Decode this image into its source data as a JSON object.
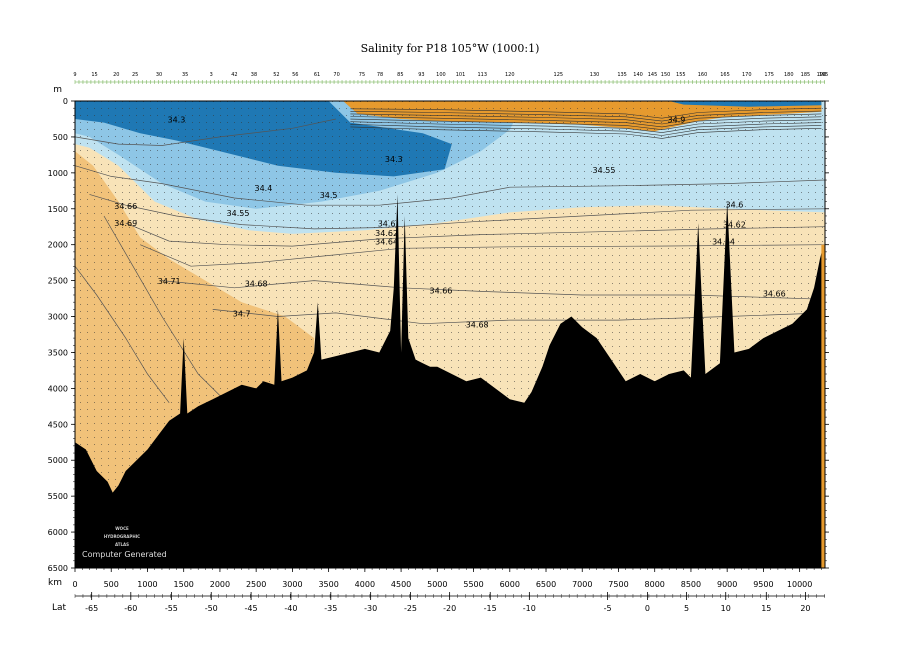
{
  "chart_data": {
    "type": "heatmap",
    "title": "Salinity for P18 105°W (1000:1)",
    "y_axis": {
      "unit": "m",
      "range": [
        0,
        6500
      ],
      "ticks": [
        "0",
        "500",
        "1000",
        "1500",
        "2000",
        "2500",
        "3000",
        "3500",
        "4000",
        "4500",
        "5000",
        "5500",
        "6000",
        "6500"
      ],
      "values": [
        0,
        500,
        1000,
        1500,
        2000,
        2500,
        3000,
        3500,
        4000,
        4500,
        5000,
        5500,
        6000,
        6500
      ]
    },
    "x_axis": {
      "unit": "km",
      "range": [
        0,
        10350
      ],
      "ticks": [
        "0",
        "500",
        "1000",
        "1500",
        "2000",
        "2500",
        "3000",
        "3500",
        "4000",
        "4500",
        "5000",
        "5500",
        "6000",
        "6500",
        "7000",
        "7500",
        "8000",
        "8500",
        "9000",
        "9500",
        "10000"
      ],
      "values": [
        0,
        500,
        1000,
        1500,
        2000,
        2500,
        3000,
        3500,
        4000,
        4500,
        5000,
        5500,
        6000,
        6500,
        7000,
        7500,
        8000,
        8500,
        9000,
        9500,
        10000
      ]
    },
    "lat_axis": {
      "label": "Lat",
      "ticks": [
        {
          "label": "-65",
          "km": 230
        },
        {
          "label": "-60",
          "km": 770
        },
        {
          "label": "-55",
          "km": 1330
        },
        {
          "label": "-50",
          "km": 1880
        },
        {
          "label": "-45",
          "km": 2430
        },
        {
          "label": "-40",
          "km": 2980
        },
        {
          "label": "-35",
          "km": 3530
        },
        {
          "label": "-30",
          "km": 4080
        },
        {
          "label": "-25",
          "km": 4630
        },
        {
          "label": "-20",
          "km": 5170
        },
        {
          "label": "-15",
          "km": 5730
        },
        {
          "label": "-10",
          "km": 6270
        },
        {
          "label": "-5",
          "km": 7350
        },
        {
          "label": "0",
          "km": 7900
        },
        {
          "label": "5",
          "km": 8440
        },
        {
          "label": "10",
          "km": 8980
        },
        {
          "label": "15",
          "km": 9540
        },
        {
          "label": "20",
          "km": 10080
        }
      ]
    },
    "stations": [
      {
        "label": "9",
        "km": 0
      },
      {
        "label": "15",
        "km": 270
      },
      {
        "label": "20",
        "km": 570
      },
      {
        "label": "25",
        "km": 830
      },
      {
        "label": "30",
        "km": 1160
      },
      {
        "label": "35",
        "km": 1520
      },
      {
        "label": "3",
        "km": 1880
      },
      {
        "label": "42",
        "km": 2200
      },
      {
        "label": "38",
        "km": 2470
      },
      {
        "label": "52",
        "km": 2780
      },
      {
        "label": "56",
        "km": 3040
      },
      {
        "label": "61",
        "km": 3340
      },
      {
        "label": "70",
        "km": 3610
      },
      {
        "label": "75",
        "km": 3960
      },
      {
        "label": "78",
        "km": 4210
      },
      {
        "label": "85",
        "km": 4490
      },
      {
        "label": "93",
        "km": 4780
      },
      {
        "label": "100",
        "km": 5050
      },
      {
        "label": "101",
        "km": 5320
      },
      {
        "label": "113",
        "km": 5620
      },
      {
        "label": "120",
        "km": 6000
      },
      {
        "label": "125",
        "km": 6670
      },
      {
        "label": "130",
        "km": 7170
      },
      {
        "label": "135",
        "km": 7550
      },
      {
        "label": "140",
        "km": 7770
      },
      {
        "label": "145",
        "km": 7970
      },
      {
        "label": "150",
        "km": 8150
      },
      {
        "label": "155",
        "km": 8360
      },
      {
        "label": "160",
        "km": 8660
      },
      {
        "label": "165",
        "km": 8970
      },
      {
        "label": "170",
        "km": 9270
      },
      {
        "label": "175",
        "km": 9580
      },
      {
        "label": "180",
        "km": 9850
      },
      {
        "label": "185",
        "km": 10080
      },
      {
        "label": "190",
        "km": 10300
      },
      {
        "label": "195",
        "km": 10330
      }
    ],
    "color_scale": {
      "low": "#1f78b4",
      "mid_low": "#8ec6e6",
      "mid": "#bfe2f0",
      "mid_high": "#f8e3b8",
      "high": "#f1c27a",
      "highest": "#e69a2e",
      "bathymetry": "#000000"
    },
    "contour_labels": [
      {
        "text": "34.3",
        "km": 1400,
        "depth": 300
      },
      {
        "text": "34.3",
        "km": 4400,
        "depth": 850
      },
      {
        "text": "34.4",
        "km": 2600,
        "depth": 1250
      },
      {
        "text": "34.5",
        "km": 3500,
        "depth": 1350
      },
      {
        "text": "34.55",
        "km": 7300,
        "depth": 1000
      },
      {
        "text": "34.55",
        "km": 2250,
        "depth": 1600
      },
      {
        "text": "34.66",
        "km": 700,
        "depth": 1500
      },
      {
        "text": "34.69",
        "km": 700,
        "depth": 1740
      },
      {
        "text": "34.6",
        "km": 4300,
        "depth": 1750
      },
      {
        "text": "34.62",
        "km": 4300,
        "depth": 1880
      },
      {
        "text": "34.64",
        "km": 4300,
        "depth": 2000
      },
      {
        "text": "34.6",
        "km": 9100,
        "depth": 1480
      },
      {
        "text": "34.62",
        "km": 9100,
        "depth": 1760
      },
      {
        "text": "34.64",
        "km": 8950,
        "depth": 2000
      },
      {
        "text": "34.71",
        "km": 1300,
        "depth": 2550
      },
      {
        "text": "34.68",
        "km": 2500,
        "depth": 2580
      },
      {
        "text": "34.66",
        "km": 5050,
        "depth": 2680
      },
      {
        "text": "34.66",
        "km": 9650,
        "depth": 2720
      },
      {
        "text": "34.7",
        "km": 2300,
        "depth": 3000
      },
      {
        "text": "34.68",
        "km": 5550,
        "depth": 3150
      },
      {
        "text": "34.9",
        "km": 8300,
        "depth": 300
      }
    ],
    "credits": {
      "logo_lines": [
        "WOCE",
        "HYDROGRAPHIC",
        "ATLAS"
      ],
      "note": "Computer Generated"
    },
    "grid": false,
    "legend": "none"
  }
}
